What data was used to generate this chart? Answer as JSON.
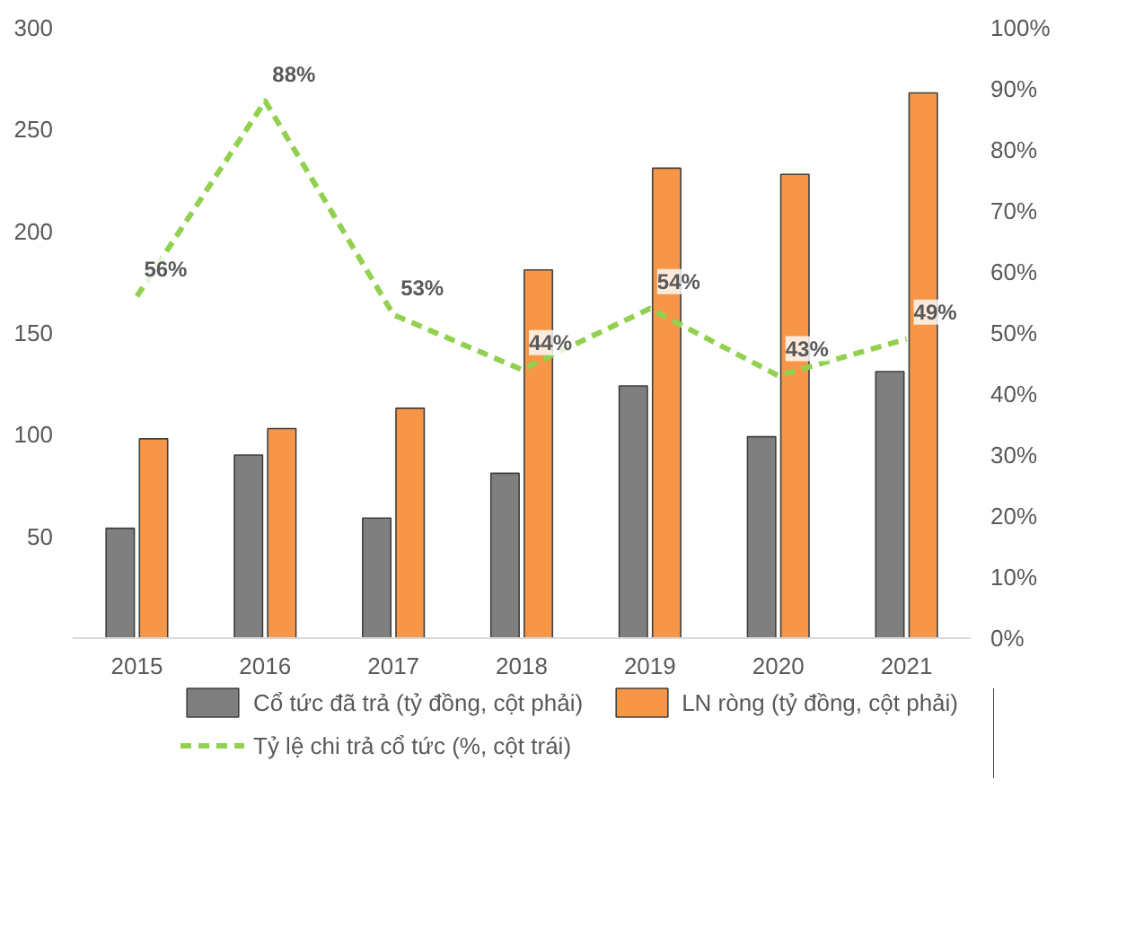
{
  "chart_data": {
    "type": "bar",
    "categories": [
      "2015",
      "2016",
      "2017",
      "2018",
      "2019",
      "2020",
      "2021"
    ],
    "series": [
      {
        "name": "Cổ tức đã trả (tỷ đồng, cột phải)",
        "color": "#7f7f7f",
        "values": [
          54,
          90,
          59,
          81,
          124,
          99,
          131
        ]
      },
      {
        "name": "LN ròng (tỷ đồng, cột phải)",
        "color": "#f79646",
        "values": [
          98,
          103,
          113,
          181,
          231,
          228,
          268
        ]
      },
      {
        "name": "Tỷ lệ chi trả cổ tức (%, cột trái)",
        "type": "line",
        "axis": "y2",
        "color": "#92d050",
        "line_style": "dashed",
        "marker": "none",
        "values": [
          56,
          88,
          53,
          44,
          54,
          43,
          49
        ],
        "value_labels": [
          "56%",
          "88%",
          "53%",
          "44%",
          "54%",
          "43%",
          "49%"
        ]
      }
    ],
    "ylim": [
      0,
      300
    ],
    "yticks": [
      50,
      100,
      150,
      200,
      250,
      300
    ],
    "y2lim": [
      0,
      100
    ],
    "y2ticks": [
      {
        "value": 0,
        "label": "0%"
      },
      {
        "value": 10,
        "label": "10%"
      },
      {
        "value": 20,
        "label": "20%"
      },
      {
        "value": 30,
        "label": "30%"
      },
      {
        "value": 40,
        "label": "40%"
      },
      {
        "value": 50,
        "label": "50%"
      },
      {
        "value": 60,
        "label": "60%"
      },
      {
        "value": 70,
        "label": "70%"
      },
      {
        "value": 80,
        "label": "80%"
      },
      {
        "value": 90,
        "label": "90%"
      },
      {
        "value": 100,
        "label": "100%"
      }
    ],
    "grid": false,
    "legend": "bottom"
  }
}
